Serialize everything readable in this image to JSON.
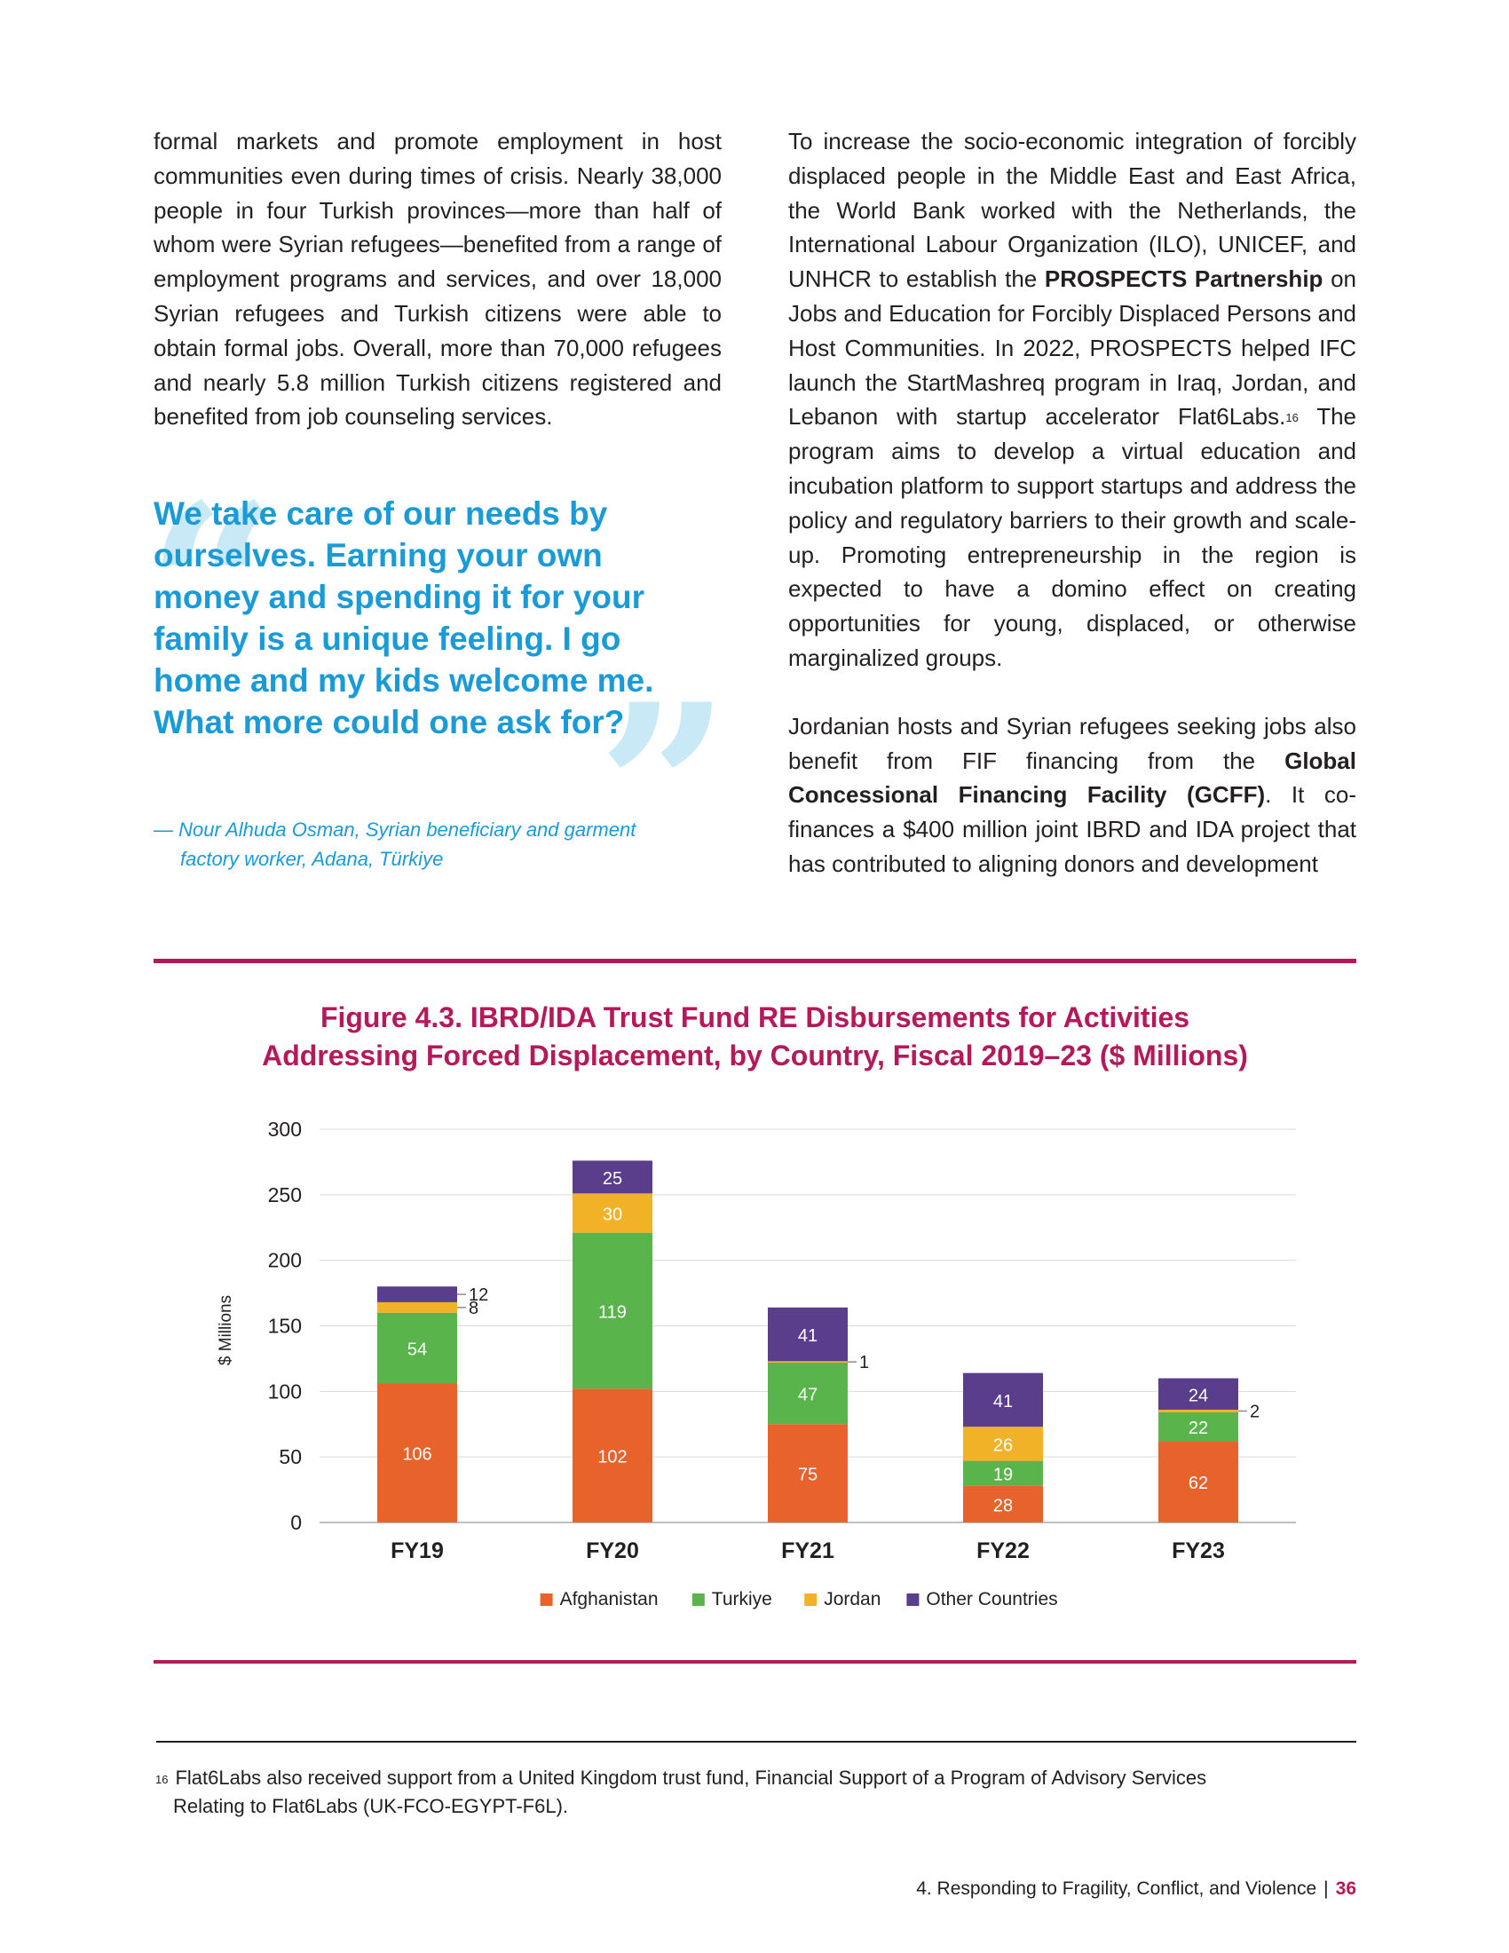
{
  "left_paragraph": "formal markets and promote employment in host communities even during times of crisis. Nearly 38,000 people in four Turkish provinces—more than half of whom were Syrian refugees—benefited from a range of employment programs and services, and over 18,000 Syrian refugees and Turkish citizens were able to obtain formal jobs. Overall, more than 70,000 refugees and nearly 5.8 million Turkish citizens registered and benefited from job counseling services.",
  "quote": {
    "open_mark": "“",
    "close_mark": "”",
    "text": "We take care of our needs by ourselves. Earning your own money and spending it for your family is a unique feeling. I go home and my kids welcome me. What more could one ask for?",
    "attribution_line1": "— Nour Alhuda Osman, Syrian beneficiary and garment",
    "attribution_line2": "factory worker, Adana, Türkiye"
  },
  "right_p1": {
    "part1": "To increase the socio-economic integration of forcibly displaced people in the Middle East and East Africa, the World Bank worked with the Netherlands, the International Labour Organization (ILO), UNICEF, and UNHCR to establish the ",
    "bold": "PROSPECTS Partnership",
    "part2": " on Jobs and Education for Forcibly Displaced Persons and Host Communities. In 2022, PROSPECTS helped IFC launch the StartMashreq program in Iraq, Jordan, and Lebanon with startup accelerator Flat6Labs.",
    "footnote_ref": "16",
    "part3": " The program aims to develop a virtual education and incubation platform to support startups and address the policy and regulatory barriers to their growth and scale-up. Promoting entrepreneurship in the region is expected to have a domino effect on creating opportunities for young, displaced, or otherwise marginalized groups."
  },
  "right_p2": {
    "part1": "Jordanian hosts and Syrian refugees seeking jobs also benefit from FIF financing from the ",
    "bold": "Global Concessional Financing Facility (GCFF)",
    "part2": ". It co-finances a $400 million joint IBRD and IDA project that has contributed to aligning donors and development"
  },
  "figure_title_line1": "Figure 4.3. IBRD/IDA Trust Fund RE Disbursements for Activities",
  "figure_title_line2": "Addressing Forced Displacement, by Country, Fiscal 2019–23 ($ Millions)",
  "chart_data": {
    "type": "bar",
    "stacked": true,
    "categories": [
      "FY19",
      "FY20",
      "FY21",
      "FY22",
      "FY23"
    ],
    "series": [
      {
        "name": "Afghanistan",
        "color": "#e8622c",
        "values": [
          106,
          102,
          75,
          28,
          62
        ]
      },
      {
        "name": "Turkiye",
        "color": "#58b44b",
        "values": [
          54,
          119,
          47,
          19,
          22
        ]
      },
      {
        "name": "Jordan",
        "color": "#f2b227",
        "values": [
          8,
          30,
          1,
          26,
          2
        ]
      },
      {
        "name": "Other Countries",
        "color": "#5a3e8c",
        "values": [
          12,
          25,
          41,
          41,
          24
        ]
      }
    ],
    "ylabel": "$ Millions",
    "ylim": [
      0,
      300
    ],
    "yticks": [
      0,
      50,
      100,
      150,
      200,
      250,
      300
    ],
    "grid": true,
    "legend": "bottom"
  },
  "footnote": {
    "number": "16",
    "line1": "Flat6Labs also received support from a United Kingdom trust fund, Financial Support of a Program of Advisory Services",
    "line2": "Relating to Flat6Labs (UK-FCO-EGYPT-F6L)."
  },
  "footer": {
    "chapter": "4. Responding to Fragility, Conflict, and Violence",
    "separator": "|",
    "page": "36"
  }
}
